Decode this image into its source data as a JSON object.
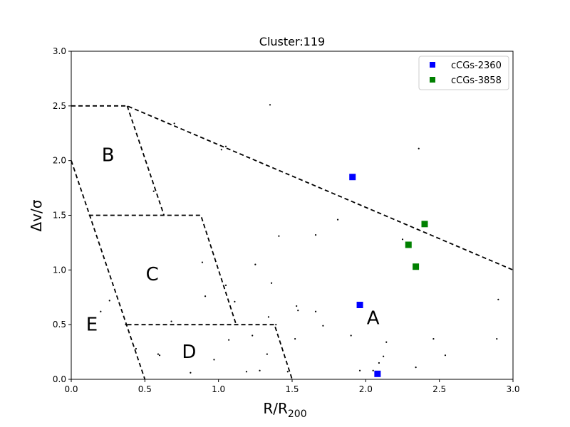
{
  "chart_data": {
    "type": "scatter",
    "title": "Cluster:119",
    "xlabel": "R/R",
    "xlabel_sub": "200",
    "ylabel": "Δv/σ",
    "xlim": [
      0,
      3
    ],
    "ylim": [
      0,
      3
    ],
    "x_ticks": [
      "0.0",
      "0.5",
      "1.0",
      "1.5",
      "2.0",
      "2.5",
      "3.0"
    ],
    "y_ticks": [
      "0.0",
      "0.5",
      "1.0",
      "1.5",
      "2.0",
      "2.5",
      "3.0"
    ],
    "grid": false,
    "legend_position": "top-right",
    "series": [
      {
        "name": "cCGs-2360",
        "color": "#0000ff",
        "marker": "square",
        "points": [
          [
            1.91,
            1.85
          ],
          [
            1.96,
            0.68
          ],
          [
            2.08,
            0.05
          ]
        ]
      },
      {
        "name": "cCGs-3858",
        "color": "#008000",
        "marker": "square",
        "points": [
          [
            2.4,
            1.42
          ],
          [
            2.29,
            1.23
          ],
          [
            2.34,
            1.03
          ]
        ]
      }
    ],
    "background_points": [
      [
        1.35,
        2.51
      ],
      [
        2.36,
        2.11
      ],
      [
        0.7,
        2.34
      ],
      [
        1.02,
        2.1
      ],
      [
        1.05,
        2.13
      ],
      [
        1.81,
        1.46
      ],
      [
        1.41,
        1.31
      ],
      [
        1.66,
        1.32
      ],
      [
        2.25,
        1.28
      ],
      [
        1.25,
        1.05
      ],
      [
        0.89,
        1.07
      ],
      [
        1.36,
        0.88
      ],
      [
        1.05,
        0.86
      ],
      [
        0.91,
        0.76
      ],
      [
        1.11,
        0.71
      ],
      [
        0.26,
        0.72
      ],
      [
        0.2,
        0.62
      ],
      [
        0.68,
        0.53
      ],
      [
        1.34,
        0.57
      ],
      [
        1.53,
        0.67
      ],
      [
        1.54,
        0.63
      ],
      [
        1.66,
        0.62
      ],
      [
        1.71,
        0.49
      ],
      [
        1.39,
        0.5
      ],
      [
        2.9,
        0.73
      ],
      [
        1.9,
        0.4
      ],
      [
        1.23,
        0.4
      ],
      [
        1.07,
        0.36
      ],
      [
        1.52,
        0.37
      ],
      [
        2.46,
        0.37
      ],
      [
        2.89,
        0.37
      ],
      [
        2.14,
        0.34
      ],
      [
        0.44,
        0.28
      ],
      [
        0.59,
        0.23
      ],
      [
        0.6,
        0.22
      ],
      [
        1.33,
        0.23
      ],
      [
        2.12,
        0.21
      ],
      [
        2.54,
        0.22
      ],
      [
        0.97,
        0.18
      ],
      [
        2.09,
        0.15
      ],
      [
        2.34,
        0.11
      ],
      [
        1.28,
        0.08
      ],
      [
        1.19,
        0.07
      ],
      [
        1.47,
        0.07
      ],
      [
        1.96,
        0.08
      ],
      [
        2.05,
        0.08
      ],
      [
        0.81,
        0.06
      ],
      [
        0.37,
        0.5
      ],
      [
        0.56,
        1.72
      ]
    ],
    "region_lines": [
      [
        [
          0,
          2.5
        ],
        [
          0.38,
          2.5
        ],
        [
          3.0,
          1.0
        ]
      ],
      [
        [
          0.38,
          2.5
        ],
        [
          0.63,
          1.5
        ]
      ],
      [
        [
          0.12,
          1.5
        ],
        [
          0.88,
          1.5
        ],
        [
          1.12,
          0.5
        ]
      ],
      [
        [
          0.38,
          0.5
        ],
        [
          1.38,
          0.5
        ],
        [
          1.5,
          0.0
        ]
      ],
      [
        [
          0,
          2.0
        ],
        [
          0.5,
          0.0
        ]
      ]
    ],
    "region_labels": [
      {
        "text": "A",
        "x": 2.05,
        "y": 0.57
      },
      {
        "text": "B",
        "x": 0.25,
        "y": 2.06
      },
      {
        "text": "C",
        "x": 0.55,
        "y": 0.97
      },
      {
        "text": "D",
        "x": 0.8,
        "y": 0.26
      },
      {
        "text": "E",
        "x": 0.14,
        "y": 0.51
      }
    ]
  }
}
